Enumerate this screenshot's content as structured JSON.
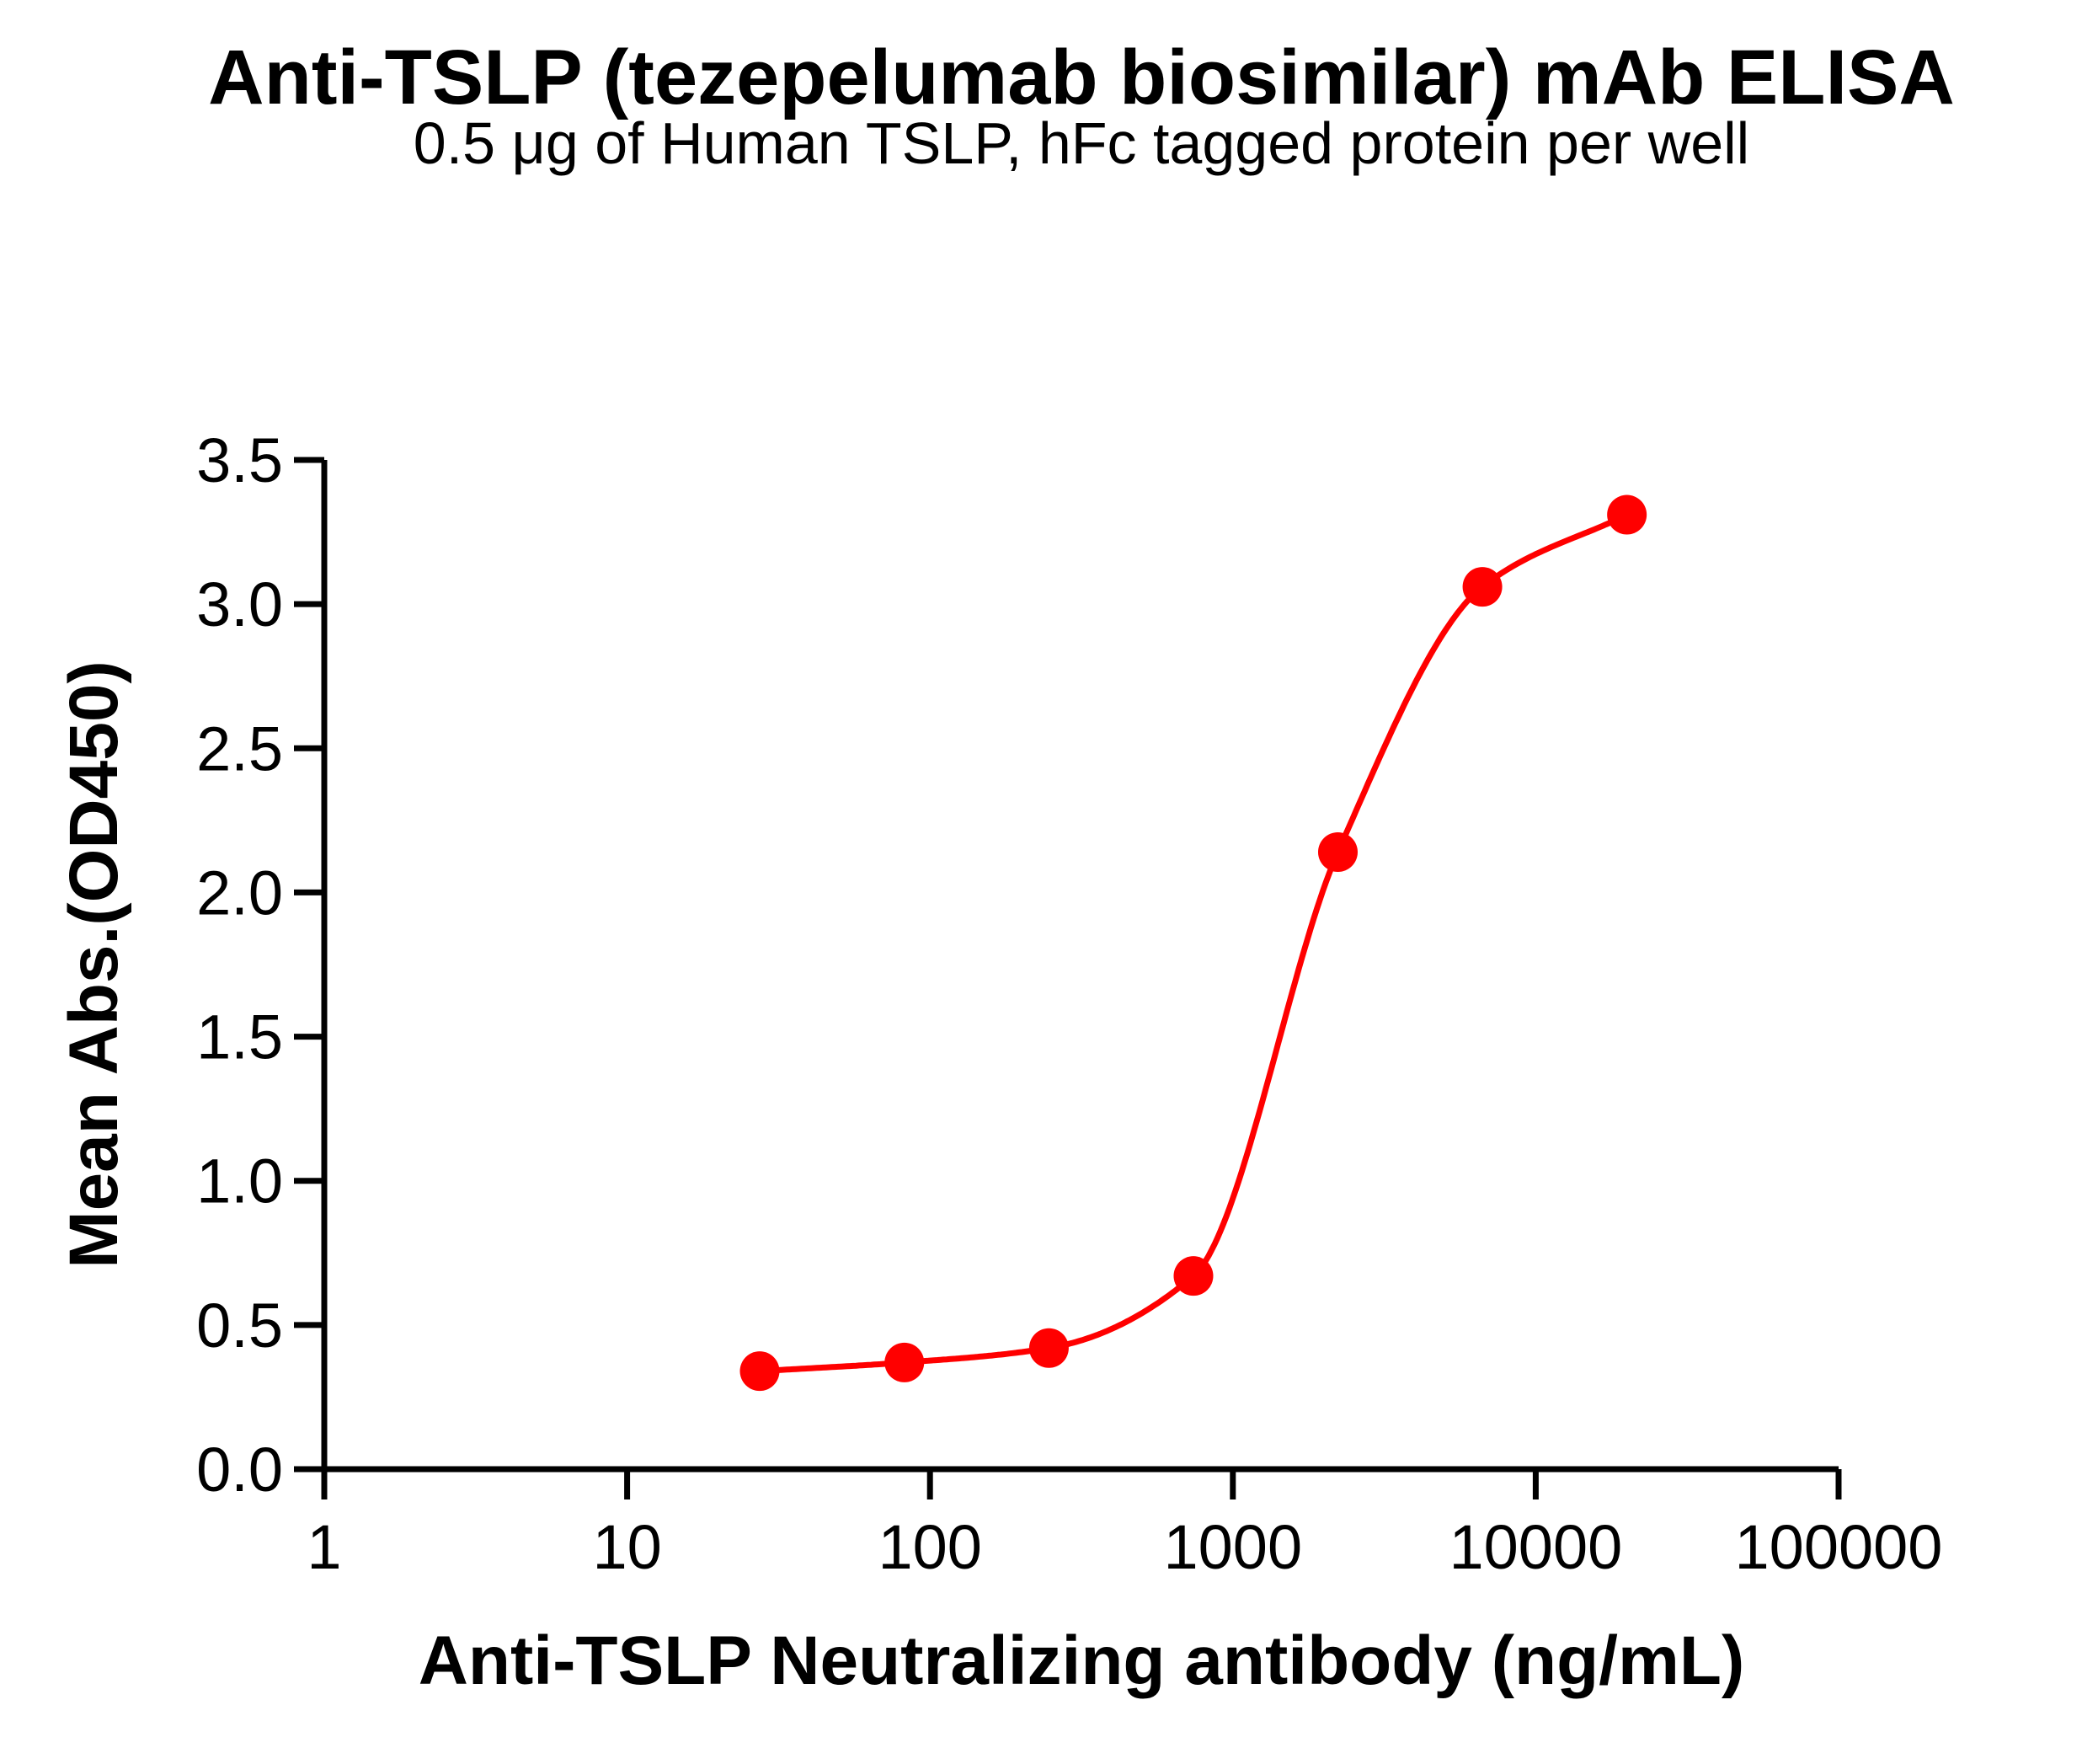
{
  "chart_data": {
    "type": "scatter",
    "title": "Anti-TSLP (tezepelumab biosimilar) mAb ELISA",
    "subtitle": "0.5 μg of Human TSLP, hFc tagged protein per well",
    "xlabel": "Anti-TSLP Neutralizing antibody (ng/mL)",
    "ylabel": "Mean Abs.(OD450)",
    "x_scale": "log10",
    "xlim": [
      1,
      100000
    ],
    "ylim": [
      0.0,
      3.5
    ],
    "grid": false,
    "legend": "none",
    "x_ticks": [
      1,
      10,
      100,
      1000,
      10000,
      100000
    ],
    "x_tick_labels": [
      "1",
      "10",
      "100",
      "1000",
      "10000",
      "100000"
    ],
    "y_ticks": [
      0.0,
      0.5,
      1.0,
      1.5,
      2.0,
      2.5,
      3.0,
      3.5
    ],
    "y_tick_labels": [
      "0.0",
      "0.5",
      "1.0",
      "1.5",
      "2.0",
      "2.5",
      "3.0",
      "3.5"
    ],
    "series": [
      {
        "name": "Anti-TSLP neutralizing antibody",
        "color": "#FF0000",
        "marker": "filled-circle",
        "line": "sigmoid fit through points",
        "points": [
          {
            "x": 27.4,
            "y": 0.34
          },
          {
            "x": 82.3,
            "y": 0.37
          },
          {
            "x": 247,
            "y": 0.42
          },
          {
            "x": 741,
            "y": 0.67
          },
          {
            "x": 2222,
            "y": 2.14
          },
          {
            "x": 6667,
            "y": 3.06
          },
          {
            "x": 20000,
            "y": 3.31
          }
        ]
      }
    ],
    "axis_color": "#000000",
    "background_color": "#FFFFFF"
  }
}
